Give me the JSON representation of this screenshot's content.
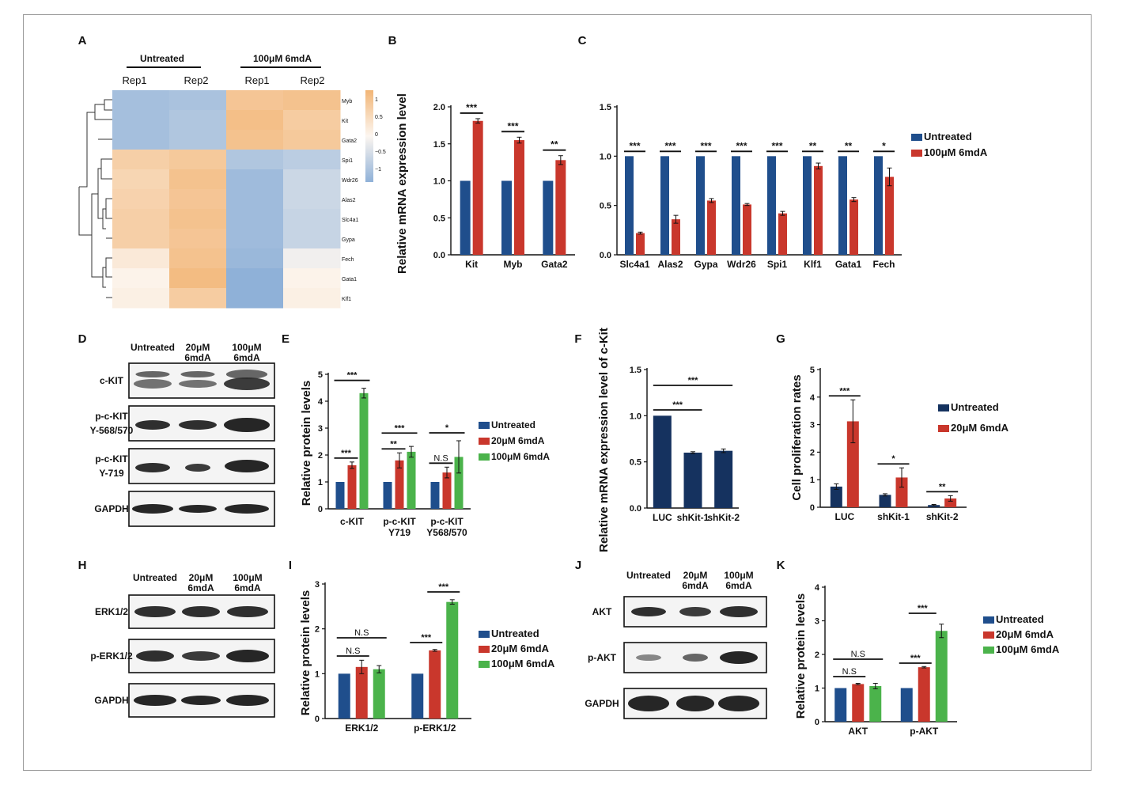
{
  "colors": {
    "blue": "#1f4e8c",
    "red": "#c9372c",
    "green": "#4bb34b",
    "navy": "#15325f",
    "heat_orange": "#f2b576",
    "heat_blue": "#8fb1d8"
  },
  "panelA": {
    "letter": "A",
    "group_untreated": "Untreated",
    "group_treated": "100μM 6mdA",
    "reps": [
      "Rep1",
      "Rep2",
      "Rep1",
      "Rep2"
    ],
    "genes": [
      "Myb",
      "Kit",
      "Gata2",
      "Spi1",
      "Wdr26",
      "Alas2",
      "Slc4a1",
      "Gypa",
      "Fech",
      "Gata1",
      "Klf1"
    ],
    "legend_ticks": [
      "1",
      "0.5",
      "0",
      "−0.5",
      "−1"
    ],
    "values": [
      [
        -0.8,
        -0.75,
        0.75,
        0.8
      ],
      [
        -0.8,
        -0.7,
        0.85,
        0.65
      ],
      [
        -0.8,
        -0.7,
        0.8,
        0.7
      ],
      [
        0.6,
        0.7,
        -0.7,
        -0.6
      ],
      [
        0.5,
        0.8,
        -0.85,
        -0.45
      ],
      [
        0.55,
        0.75,
        -0.85,
        -0.45
      ],
      [
        0.6,
        0.8,
        -0.85,
        -0.5
      ],
      [
        0.6,
        0.75,
        -0.85,
        -0.5
      ],
      [
        0.2,
        0.8,
        -0.9,
        -0.1
      ],
      [
        0.05,
        0.9,
        -1.0,
        0.05
      ],
      [
        0.1,
        0.65,
        -1.0,
        0.1
      ]
    ]
  },
  "chart_data": [
    {
      "panel": "B",
      "type": "bar",
      "categories": [
        "Kit",
        "Myb",
        "Gata2"
      ],
      "ylabel": "Relative mRNA expression level",
      "ylim": [
        0,
        2.0
      ],
      "yticks": [
        "0.0",
        "0.5",
        "1.0",
        "1.5",
        "2.0"
      ],
      "series": [
        {
          "values": [
            1,
            1,
            1
          ],
          "err": [
            0,
            0,
            0
          ]
        },
        {
          "values": [
            1.81,
            1.55,
            1.28
          ],
          "err": [
            0.03,
            0.04,
            0.06
          ]
        }
      ],
      "sig": [
        "***",
        "***",
        "**"
      ]
    },
    {
      "panel": "C",
      "type": "bar",
      "categories": [
        "Slc4a1",
        "Alas2",
        "Gypa",
        "Wdr26",
        "Spi1",
        "Klf1",
        "Gata1",
        "Fech"
      ],
      "ylim": [
        0,
        1.5
      ],
      "yticks": [
        "0.0",
        "0.5",
        "1.0",
        "1.5"
      ],
      "legend": [
        "Untreated",
        "100μM 6mdA"
      ],
      "series": [
        {
          "name": "Untreated",
          "values": [
            1,
            1,
            1,
            1,
            1,
            1,
            1,
            1
          ],
          "err": [
            0,
            0,
            0,
            0,
            0,
            0,
            0,
            0
          ]
        },
        {
          "name": "100μM 6mdA",
          "values": [
            0.22,
            0.36,
            0.55,
            0.51,
            0.42,
            0.9,
            0.56,
            0.79
          ],
          "err": [
            0.01,
            0.04,
            0.02,
            0.01,
            0.02,
            0.03,
            0.02,
            0.09
          ]
        }
      ],
      "sig": [
        "***",
        "***",
        "***",
        "***",
        "***",
        "**",
        "**",
        "*"
      ]
    },
    {
      "panel": "E",
      "type": "bar",
      "categories": [
        "c-KIT",
        "p-c-KIT Y719",
        "p-c-KIT Y568/570"
      ],
      "ylabel": "Relative protein levels",
      "ylim": [
        0,
        5
      ],
      "yticks": [
        "0",
        "1",
        "2",
        "3",
        "4",
        "5"
      ],
      "legend": [
        "Untreated",
        "20μM 6mdA",
        "100μM 6mdA"
      ],
      "series": [
        {
          "name": "Untreated",
          "values": [
            1,
            1,
            1
          ],
          "err": [
            0,
            0,
            0
          ]
        },
        {
          "name": "20μM 6mdA",
          "values": [
            1.62,
            1.8,
            1.35
          ],
          "err": [
            0.12,
            0.28,
            0.2
          ]
        },
        {
          "name": "100μM 6mdA",
          "values": [
            4.3,
            2.12,
            1.93
          ],
          "err": [
            0.18,
            0.2,
            0.6
          ]
        }
      ],
      "sig": [
        [
          "***",
          "***"
        ],
        [
          "**",
          "***"
        ],
        [
          "N.S",
          "*"
        ]
      ]
    },
    {
      "panel": "F",
      "type": "bar",
      "categories": [
        "LUC",
        "shKit-1",
        "shKit-2"
      ],
      "ylabel": "Relative mRNA expression level of c-Kit",
      "ylim": [
        0,
        1.5
      ],
      "yticks": [
        "0.0",
        "0.5",
        "1.0",
        "1.5"
      ],
      "series": [
        {
          "values": [
            1.0,
            0.6,
            0.62
          ],
          "err": [
            0,
            0.01,
            0.02
          ]
        }
      ],
      "sig": [
        "***",
        "***"
      ]
    },
    {
      "panel": "G",
      "type": "bar",
      "categories": [
        "LUC",
        "shKit-1",
        "shKit-2"
      ],
      "ylabel": "Cell proliferation rates",
      "ylim": [
        0,
        5
      ],
      "yticks": [
        "0",
        "1",
        "2",
        "3",
        "4",
        "5"
      ],
      "legend": [
        "Untreated",
        "20μM 6mdA"
      ],
      "series": [
        {
          "name": "Untreated",
          "values": [
            0.75,
            0.45,
            0.08
          ],
          "err": [
            0.1,
            0.04,
            0.02
          ]
        },
        {
          "name": "20μM 6mdA",
          "values": [
            3.12,
            1.08,
            0.32
          ],
          "err": [
            0.78,
            0.35,
            0.1
          ]
        }
      ],
      "sig": [
        "***",
        "*",
        "**"
      ]
    },
    {
      "panel": "I",
      "type": "bar",
      "categories": [
        "ERK1/2",
        "p-ERK1/2"
      ],
      "ylabel": "Relative protein levels",
      "ylim": [
        0,
        3
      ],
      "yticks": [
        "0",
        "1",
        "2",
        "3"
      ],
      "legend": [
        "Untreated",
        "20μM 6mdA",
        "100μM 6mdA"
      ],
      "series": [
        {
          "name": "Untreated",
          "values": [
            1,
            1
          ],
          "err": [
            0,
            0
          ]
        },
        {
          "name": "20μM 6mdA",
          "values": [
            1.15,
            1.52
          ],
          "err": [
            0.15,
            0.02
          ]
        },
        {
          "name": "100μM 6mdA",
          "values": [
            1.1,
            2.6
          ],
          "err": [
            0.08,
            0.05
          ]
        }
      ],
      "sig": [
        [
          "N.S",
          "N.S"
        ],
        [
          "***",
          "***"
        ]
      ]
    },
    {
      "panel": "K",
      "type": "bar",
      "categories": [
        "AKT",
        "p-AKT"
      ],
      "ylabel": "Relative protein levels",
      "ylim": [
        0,
        4
      ],
      "yticks": [
        "0",
        "1",
        "2",
        "3",
        "4"
      ],
      "legend": [
        "Untreated",
        "20μM 6mdA",
        "100μM 6mdA"
      ],
      "series": [
        {
          "name": "Untreated",
          "values": [
            1,
            1
          ],
          "err": [
            0,
            0
          ]
        },
        {
          "name": "20μM 6mdA",
          "values": [
            1.12,
            1.62
          ],
          "err": [
            0.02,
            0.02
          ]
        },
        {
          "name": "100μM 6mdA",
          "values": [
            1.06,
            2.7
          ],
          "err": [
            0.08,
            0.2
          ]
        }
      ],
      "sig": [
        [
          "N.S",
          "N.S"
        ],
        [
          "***",
          "***"
        ]
      ]
    }
  ],
  "blots": {
    "D": {
      "letter": "D",
      "columns": [
        "Untreated",
        "20μM\n6mdA",
        "100μM\n6mdA"
      ],
      "rows": [
        "c-KIT",
        "p-c-KIT\nY-568/570",
        "p-c-KIT\nY-719",
        "GAPDH"
      ]
    },
    "H": {
      "letter": "H",
      "columns": [
        "Untreated",
        "20μM\n6mdA",
        "100μM\n6mdA"
      ],
      "rows": [
        "ERK1/2",
        "p-ERK1/2",
        "GAPDH"
      ]
    },
    "J": {
      "letter": "J",
      "columns": [
        "Untreated",
        "20μM\n6mdA",
        "100μM\n6mdA"
      ],
      "rows": [
        "AKT",
        "p-AKT",
        "GAPDH"
      ]
    }
  },
  "letters": {
    "B": "B",
    "C": "C",
    "E": "E",
    "F": "F",
    "G": "G",
    "I": "I",
    "K": "K"
  }
}
